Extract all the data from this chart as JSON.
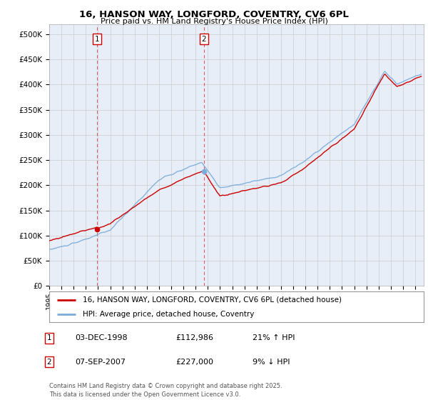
{
  "title": "16, HANSON WAY, LONGFORD, COVENTRY, CV6 6PL",
  "subtitle": "Price paid vs. HM Land Registry's House Price Index (HPI)",
  "ylabel_ticks": [
    "£0",
    "£50K",
    "£100K",
    "£150K",
    "£200K",
    "£250K",
    "£300K",
    "£350K",
    "£400K",
    "£450K",
    "£500K"
  ],
  "ytick_values": [
    0,
    50000,
    100000,
    150000,
    200000,
    250000,
    300000,
    350000,
    400000,
    450000,
    500000
  ],
  "ylim": [
    0,
    520000
  ],
  "xlim_start": 1995.0,
  "xlim_end": 2025.7,
  "line1_color": "#cc0000",
  "line2_color": "#7aaddc",
  "line1_label": "16, HANSON WAY, LONGFORD, COVENTRY, CV6 6PL (detached house)",
  "line2_label": "HPI: Average price, detached house, Coventry",
  "marker1_date": 1998.92,
  "marker1_price": 112986,
  "marker1_label": "1",
  "marker2_date": 2007.67,
  "marker2_price": 227000,
  "marker2_label": "2",
  "footer": "Contains HM Land Registry data © Crown copyright and database right 2025.\nThis data is licensed under the Open Government Licence v3.0.",
  "bg_color": "#e8eef8",
  "plot_bg_color": "#e8eef8",
  "annotation_table": [
    {
      "num": "1",
      "date": "03-DEC-1998",
      "price": "£112,986",
      "hpi": "21% ↑ HPI"
    },
    {
      "num": "2",
      "date": "07-SEP-2007",
      "price": "£227,000",
      "hpi": "9% ↓ HPI"
    }
  ]
}
